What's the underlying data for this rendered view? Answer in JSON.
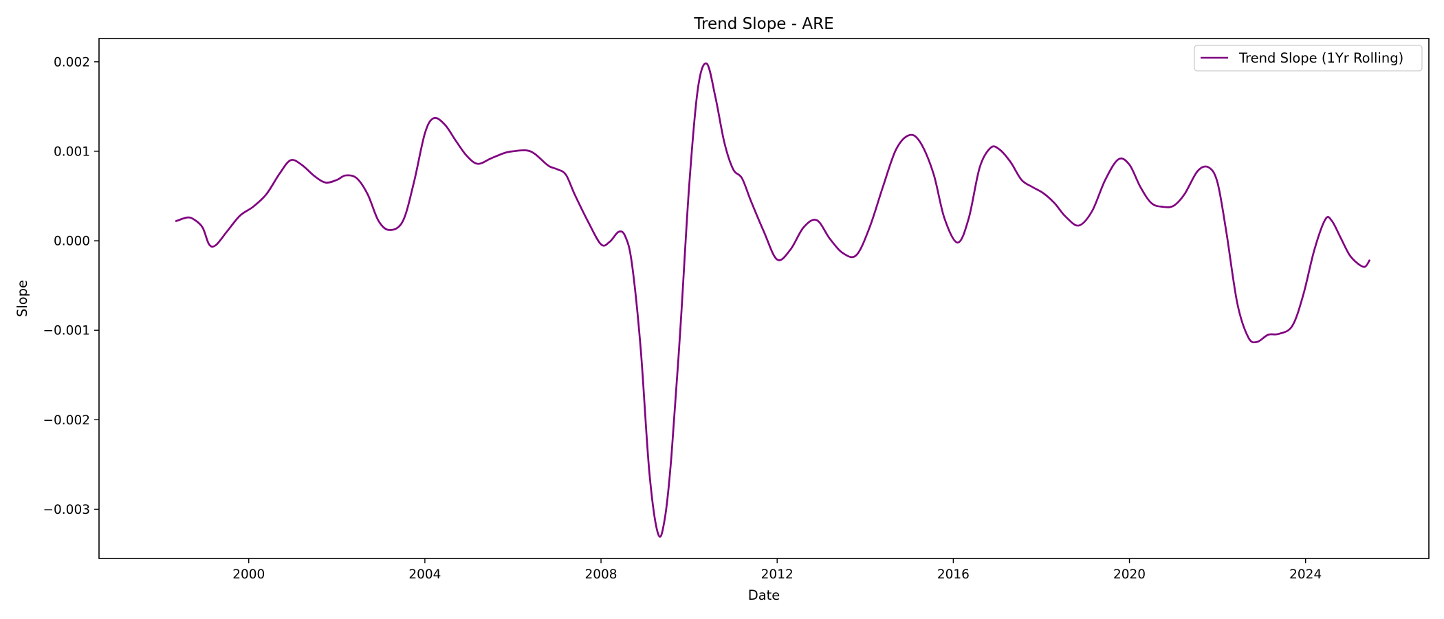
{
  "chart_data": {
    "type": "line",
    "title": "Trend Slope - ARE",
    "xlabel": "Date",
    "ylabel": "Slope",
    "xlim": [
      1996.6,
      2026.8
    ],
    "ylim": [
      -0.00355,
      0.00226
    ],
    "x_ticks": [
      2000,
      2004,
      2008,
      2012,
      2016,
      2020,
      2024
    ],
    "x_tick_labels": [
      "2000",
      "2004",
      "2008",
      "2012",
      "2016",
      "2020",
      "2024"
    ],
    "y_ticks": [
      0.002,
      0.001,
      0.0,
      -0.001,
      -0.002,
      -0.003
    ],
    "y_tick_labels": [
      "0.002",
      "0.001",
      "0.000",
      "−0.001",
      "−0.002",
      "−0.003"
    ],
    "grid": false,
    "legend_position": "top-right",
    "series": [
      {
        "name": "Trend Slope (1Yr Rolling)",
        "color": "#800080",
        "x": [
          1998.35,
          1998.6,
          1998.75,
          1998.95,
          1999.1,
          1999.25,
          1999.5,
          1999.8,
          2000.1,
          2000.4,
          2000.7,
          2000.95,
          2001.2,
          2001.5,
          2001.75,
          2002.0,
          2002.2,
          2002.45,
          2002.7,
          2002.95,
          2003.2,
          2003.5,
          2003.75,
          2004.0,
          2004.2,
          2004.45,
          2004.7,
          2004.95,
          2005.2,
          2005.5,
          2005.8,
          2006.0,
          2006.3,
          2006.5,
          2006.8,
          2007.0,
          2007.2,
          2007.4,
          2007.7,
          2008.0,
          2008.2,
          2008.4,
          2008.55,
          2008.7,
          2008.9,
          2009.1,
          2009.3,
          2009.45,
          2009.6,
          2009.8,
          2010.0,
          2010.2,
          2010.4,
          2010.6,
          2010.8,
          2011.0,
          2011.2,
          2011.4,
          2011.7,
          2012.0,
          2012.3,
          2012.6,
          2012.9,
          2013.2,
          2013.5,
          2013.8,
          2014.1,
          2014.4,
          2014.7,
          2015.0,
          2015.25,
          2015.55,
          2015.8,
          2016.1,
          2016.35,
          2016.6,
          2016.85,
          2017.05,
          2017.3,
          2017.55,
          2017.8,
          2018.05,
          2018.3,
          2018.55,
          2018.85,
          2019.15,
          2019.45,
          2019.75,
          2020.0,
          2020.25,
          2020.5,
          2020.75,
          2021.0,
          2021.25,
          2021.55,
          2021.8,
          2022.0,
          2022.2,
          2022.45,
          2022.7,
          2022.9,
          2023.15,
          2023.4,
          2023.7,
          2023.95,
          2024.2,
          2024.45,
          2024.6,
          2024.8,
          2025.0,
          2025.2,
          2025.35,
          2025.45
        ],
        "y": [
          0.00022,
          0.00026,
          0.00024,
          0.00015,
          -4e-05,
          -5e-05,
          0.0001,
          0.00028,
          0.00038,
          0.00052,
          0.00075,
          0.0009,
          0.00085,
          0.00072,
          0.00065,
          0.00068,
          0.00073,
          0.0007,
          0.00052,
          0.00022,
          0.00012,
          0.00022,
          0.00065,
          0.0012,
          0.00137,
          0.0013,
          0.00112,
          0.00095,
          0.00086,
          0.00092,
          0.00098,
          0.001,
          0.00101,
          0.00097,
          0.00084,
          0.0008,
          0.00074,
          0.00052,
          0.00022,
          -4e-05,
          -1e-05,
          0.0001,
          5e-05,
          -0.00025,
          -0.0012,
          -0.0026,
          -0.00328,
          -0.0031,
          -0.0024,
          -0.001,
          0.0006,
          0.0017,
          0.00198,
          0.0016,
          0.0011,
          0.0008,
          0.0007,
          0.00045,
          0.0001,
          -0.00021,
          -0.0001,
          0.00015,
          0.00023,
          2e-05,
          -0.00014,
          -0.00016,
          0.00015,
          0.0006,
          0.00102,
          0.00118,
          0.0011,
          0.00075,
          0.00025,
          -2e-05,
          0.00025,
          0.00082,
          0.00104,
          0.00102,
          0.00088,
          0.00068,
          0.0006,
          0.00053,
          0.00042,
          0.00027,
          0.00017,
          0.00033,
          0.00068,
          0.00091,
          0.00085,
          0.0006,
          0.00042,
          0.00038,
          0.00039,
          0.00052,
          0.00078,
          0.00082,
          0.00065,
          0.0001,
          -0.0007,
          -0.00108,
          -0.00113,
          -0.00105,
          -0.00104,
          -0.00095,
          -0.0006,
          -0.0001,
          0.00024,
          0.00022,
          3e-05,
          -0.00016,
          -0.00026,
          -0.00029,
          -0.00022
        ]
      }
    ]
  }
}
